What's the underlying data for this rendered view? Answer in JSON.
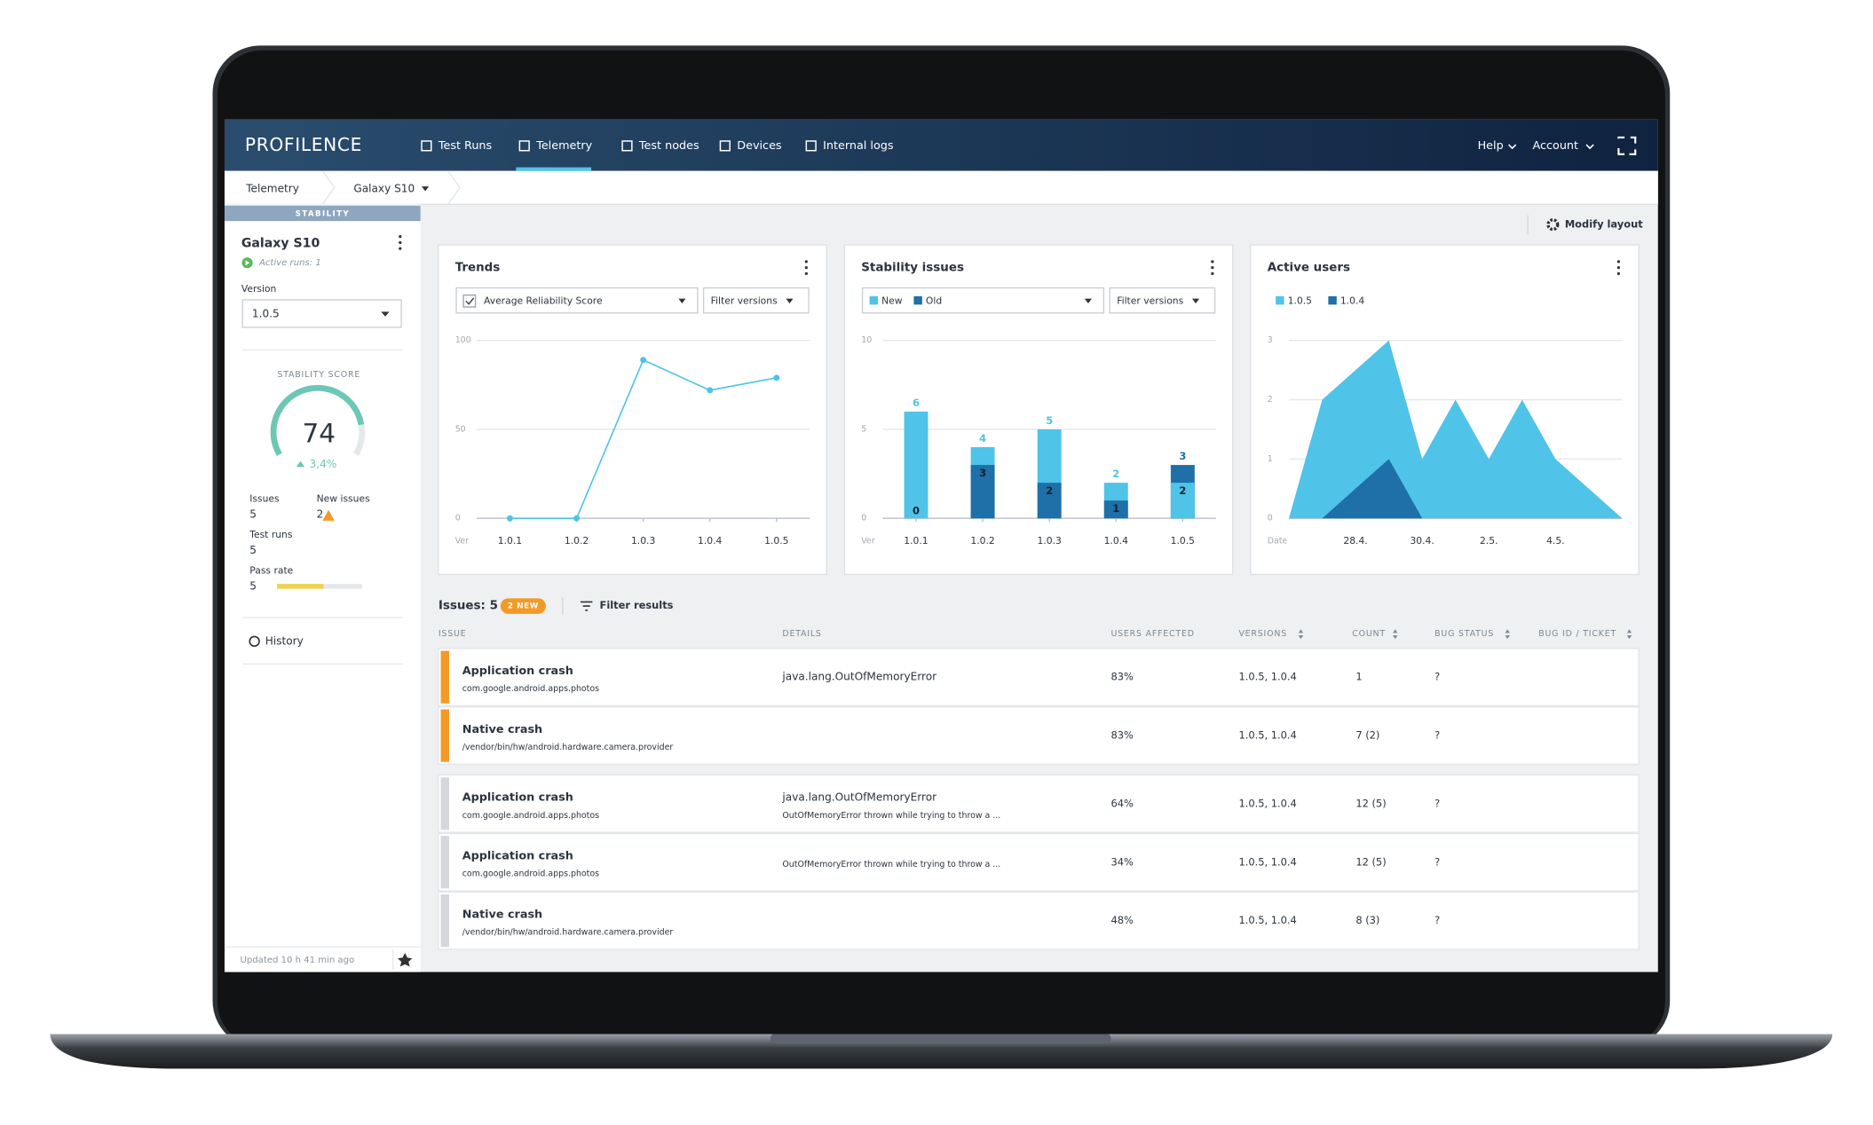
{
  "nav": {
    "brand": "PROFILENCE",
    "items": [
      "Test Runs",
      "Telemetry",
      "Test nodes",
      "Devices",
      "Internal logs"
    ],
    "active": 1,
    "right": [
      "Help",
      "Account"
    ]
  },
  "breadcrumb": [
    "Telemetry",
    "Galaxy S10"
  ],
  "sidebar": {
    "tab": "STABILITY",
    "device": "Galaxy S10",
    "active_runs": "Active runs: 1",
    "version_label": "Version",
    "version": "1.0.5",
    "score_label": "STABILITY SCORE",
    "score": 74,
    "score_change": "3,4%",
    "stats": [
      {
        "label": "Issues",
        "value": 5
      },
      {
        "label": "New issues",
        "value": 2
      },
      {
        "label": "Test runs",
        "value": 5
      },
      {
        "label": "Pass rate",
        "value": 5
      }
    ],
    "history": "History",
    "updated": "Updated 10 h 41 min ago"
  },
  "toolbar": {
    "modify": "Modify layout"
  },
  "chart_data": [
    {
      "type": "line",
      "title": "Trends",
      "metric": "Average Reliability Score",
      "filter": "Filter versions",
      "x_label": "Ver",
      "categories": [
        "1.0.1",
        "1.0.2",
        "1.0.3",
        "1.0.4",
        "1.0.5"
      ],
      "values": [
        0,
        0,
        89,
        72,
        79
      ],
      "color": "#4fc3e8",
      "ylim": [
        0,
        100
      ],
      "yticks": [
        0,
        50,
        100
      ],
      "grid": true
    },
    {
      "type": "bar",
      "mode": "overlay",
      "title": "Stability issues",
      "filter": "Filter versions",
      "x_label": "Ver",
      "categories": [
        "1.0.1",
        "1.0.2",
        "1.0.3",
        "1.0.4",
        "1.0.5"
      ],
      "series": [
        {
          "name": "New",
          "color": "#4fc3e8",
          "values": [
            6,
            4,
            5,
            2,
            2
          ]
        },
        {
          "name": "Old",
          "color": "#1f6fa8",
          "values": [
            0,
            3,
            2,
            1,
            3
          ]
        }
      ],
      "ylim": [
        0,
        10
      ],
      "yticks": [
        0,
        5,
        10
      ],
      "grid": true
    },
    {
      "type": "area",
      "title": "Active users",
      "x_label": "Date",
      "categories": [
        null,
        null,
        "28.4.",
        null,
        "30.4.",
        null,
        "2.5.",
        null,
        "4.5.",
        null,
        null
      ],
      "series": [
        {
          "name": "1.0.5",
          "color": "#4fc3e8",
          "values": [
            0,
            2,
            2.5,
            3,
            1,
            2,
            1,
            2,
            1,
            0.5,
            0
          ]
        },
        {
          "name": "1.0.4",
          "color": "#1f6fa8",
          "values": [
            0,
            0,
            0.5,
            1,
            0,
            0,
            0,
            0,
            0,
            0,
            0
          ]
        }
      ],
      "ylim": [
        0,
        3
      ],
      "yticks": [
        0,
        1,
        2,
        3
      ],
      "grid": true
    }
  ],
  "issues": {
    "title": "Issues: 5",
    "badge": "2 NEW",
    "filter": "Filter results",
    "columns": [
      "ISSUE",
      "DETAILS",
      "USERS AFFECTED",
      "VERSIONS",
      "COUNT",
      "BUG STATUS",
      "BUG ID / TICKET"
    ],
    "rows": [
      {
        "title": "Application crash",
        "source": "com.google.android.apps.photos",
        "details": "java.lang.OutOfMemoryError",
        "users": "83%",
        "versions": "1.0.5, 1.0.4",
        "count": "1",
        "status": "?",
        "new": true
      },
      {
        "title": "Native crash",
        "source": "/vendor/bin/hw/android.hardware.camera.provider",
        "users": "83%",
        "versions": "1.0.5, 1.0.4",
        "count": "7 (2)",
        "status": "?",
        "new": true
      },
      {
        "title": "Application crash",
        "source": "com.google.android.apps.photos",
        "details": "java.lang.OutOfMemoryError",
        "details_note": "OutOfMemoryError thrown while trying to throw a ...",
        "users": "64%",
        "versions": "1.0.5, 1.0.4",
        "count": "12 (5)",
        "status": "?",
        "new": false
      },
      {
        "title": "Application crash",
        "source": "com.google.android.apps.photos",
        "details_note": "OutOfMemoryError thrown while trying to throw a ...",
        "users": "34%",
        "versions": "1.0.5, 1.0.4",
        "count": "12 (5)",
        "status": "?",
        "new": false
      },
      {
        "title": "Native crash",
        "source": "/vendor/bin/hw/android.hardware.camera.provider",
        "users": "48%",
        "versions": "1.0.5, 1.0.4",
        "count": "8 (3)",
        "status": "?",
        "new": false
      }
    ]
  }
}
